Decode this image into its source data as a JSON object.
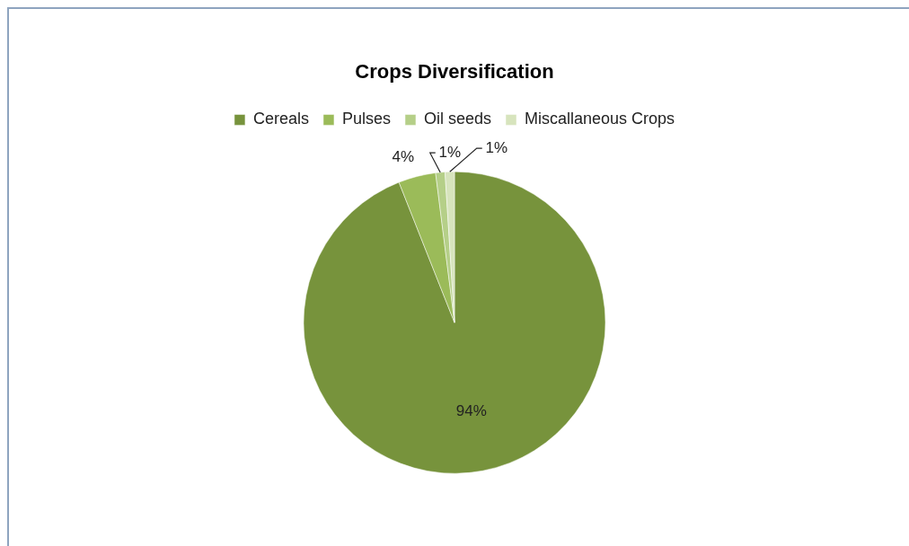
{
  "chart_data": {
    "type": "pie",
    "title": "Crops Diversification",
    "categories": [
      "Cereals",
      "Pulses",
      "Oil seeds",
      "Miscallaneous Crops"
    ],
    "values": [
      94,
      4,
      1,
      1
    ],
    "colors": [
      "#77933c",
      "#9bbb59",
      "#b5cf88",
      "#d7e4bd"
    ],
    "value_labels": [
      "94%",
      "4%",
      "1%",
      "1%"
    ],
    "legend": "top"
  }
}
